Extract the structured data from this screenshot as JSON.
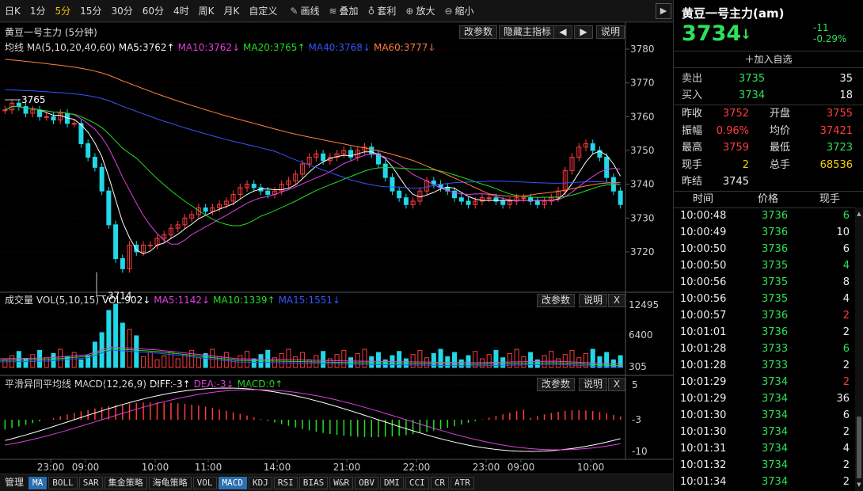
{
  "toolbar": {
    "periods": [
      "日K",
      "1分",
      "5分",
      "15分",
      "30分",
      "60分",
      "4时",
      "周K",
      "月K",
      "自定义"
    ],
    "active_period": "5分",
    "tools": [
      {
        "icon": "pencil-icon",
        "label": "画线"
      },
      {
        "icon": "stack-icon",
        "label": "叠加"
      },
      {
        "icon": "bag-icon",
        "label": "套利"
      },
      {
        "icon": "zoom-in-icon",
        "label": "放大"
      },
      {
        "icon": "zoom-out-icon",
        "label": "缩小"
      }
    ],
    "collapse_arrow": "▶"
  },
  "main_panel": {
    "title": "黄豆一号主力 (5分钟)",
    "buttons": [
      "改参数",
      "隐藏主指标",
      "◀",
      "▶",
      "说明"
    ],
    "legend": [
      {
        "text": "均线 MA(5,10,20,40,60)",
        "color": "#dddddd"
      },
      {
        "text": "MA5:3762↑",
        "color": "#ffffff"
      },
      {
        "text": "MA10:3762↓",
        "color": "#e040e0"
      },
      {
        "text": "MA20:3765↑",
        "color": "#22dd22"
      },
      {
        "text": "MA40:3768↓",
        "color": "#3355ff"
      },
      {
        "text": "MA60:3777↓",
        "color": "#ff8040"
      }
    ],
    "y_ticks": [
      "3780",
      "3770",
      "3760",
      "3750",
      "3740",
      "3730",
      "3720"
    ],
    "price_labels": {
      "high": "3765",
      "low": "3714"
    }
  },
  "volume_panel": {
    "legend": [
      {
        "text": "成交量 VOL(5,10,15)",
        "color": "#dddddd"
      },
      {
        "text": "VOL:902↓",
        "color": "#ffffff"
      },
      {
        "text": "MA5:1142↓",
        "color": "#e040e0"
      },
      {
        "text": "MA10:1339↑",
        "color": "#22dd22"
      },
      {
        "text": "MA15:1551↓",
        "color": "#3355ff"
      }
    ],
    "buttons": [
      "改参数",
      "说明",
      "X"
    ],
    "y_ticks": [
      "12495",
      "6400",
      "305"
    ]
  },
  "macd_panel": {
    "legend": [
      {
        "text": "平滑异同平均线 MACD(12,26,9)",
        "color": "#dddddd"
      },
      {
        "text": "DIFF:-3↑",
        "color": "#ffffff"
      },
      {
        "text": "DEA:-3↓",
        "color": "#e040e0"
      },
      {
        "text": "MACD:0↑",
        "color": "#22dd22"
      }
    ],
    "buttons": [
      "改参数",
      "说明",
      "X"
    ],
    "y_ticks": [
      "5",
      "-3",
      "-10"
    ]
  },
  "x_axis": [
    "23:00",
    "09:00",
    "10:00",
    "11:00",
    "14:00",
    "21:00",
    "22:00",
    "23:00",
    "09:00",
    "10:00"
  ],
  "bottom_tabs": [
    "管理",
    "MA",
    "BOLL",
    "SAR",
    "集金策略",
    "海龟策略",
    "VOL",
    "MACD",
    "KDJ",
    "RSI",
    "BIAS",
    "W&R",
    "OBV",
    "DMI",
    "CCI",
    "CR",
    "ATR"
  ],
  "quote": {
    "name": "黄豆一号主力(am)",
    "price": "3734",
    "price_arrow": "↓",
    "change": "-11",
    "change_pct": "-0.29%",
    "watch_label": "加入自选",
    "ask_label": "卖出",
    "ask_price": "3735",
    "ask_vol": "35",
    "bid_label": "买入",
    "bid_price": "3734",
    "bid_vol": "18",
    "stats": [
      {
        "l1": "昨收",
        "v1": "3752",
        "c1": "red",
        "l2": "开盘",
        "v2": "3755",
        "c2": "red"
      },
      {
        "l1": "振幅",
        "v1": "0.96%",
        "c1": "red",
        "l2": "均价",
        "v2": "37421",
        "c2": "red"
      },
      {
        "l1": "最高",
        "v1": "3759",
        "c1": "red",
        "l2": "最低",
        "v2": "3723",
        "c2": "green"
      },
      {
        "l1": "现手",
        "v1": "2",
        "c1": "yellow",
        "l2": "总手",
        "v2": "68536",
        "c2": "yellow"
      },
      {
        "l1": "昨结",
        "v1": "3745",
        "c1": "white",
        "l2": "",
        "v2": "",
        "c2": "white"
      }
    ],
    "tick_headers": [
      "时间",
      "价格",
      "现手"
    ],
    "ticks": [
      {
        "t": "10:00:48",
        "p": "3736",
        "v": "6",
        "vc": "green"
      },
      {
        "t": "10:00:49",
        "p": "3736",
        "v": "10",
        "vc": "white"
      },
      {
        "t": "10:00:50",
        "p": "3736",
        "v": "6",
        "vc": "white"
      },
      {
        "t": "10:00:50",
        "p": "3735",
        "v": "4",
        "vc": "green"
      },
      {
        "t": "10:00:56",
        "p": "3735",
        "v": "8",
        "vc": "white"
      },
      {
        "t": "10:00:56",
        "p": "3735",
        "v": "4",
        "vc": "white"
      },
      {
        "t": "10:00:57",
        "p": "3736",
        "v": "2",
        "vc": "red"
      },
      {
        "t": "10:01:01",
        "p": "3736",
        "v": "2",
        "vc": "white"
      },
      {
        "t": "10:01:28",
        "p": "3733",
        "v": "6",
        "vc": "green"
      },
      {
        "t": "10:01:28",
        "p": "3733",
        "v": "2",
        "vc": "white"
      },
      {
        "t": "10:01:29",
        "p": "3734",
        "v": "2",
        "vc": "red"
      },
      {
        "t": "10:01:29",
        "p": "3734",
        "v": "36",
        "vc": "white"
      },
      {
        "t": "10:01:30",
        "p": "3734",
        "v": "6",
        "vc": "white"
      },
      {
        "t": "10:01:30",
        "p": "3734",
        "v": "2",
        "vc": "white"
      },
      {
        "t": "10:01:31",
        "p": "3734",
        "v": "4",
        "vc": "white"
      },
      {
        "t": "10:01:32",
        "p": "3734",
        "v": "2",
        "vc": "white"
      },
      {
        "t": "10:01:34",
        "p": "3734",
        "v": "2",
        "vc": "white"
      }
    ]
  },
  "colors": {
    "up": "#ff3c3c",
    "down": "#22d8e8",
    "grid": "#3a0000",
    "axis": "#555555"
  }
}
